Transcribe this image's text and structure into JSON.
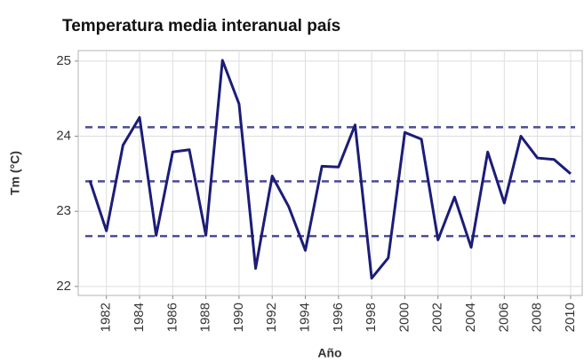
{
  "chart_data": {
    "type": "line",
    "title": "Temperatura media interanual país",
    "x_label": "Año",
    "y_label": "Tm (°C)",
    "x": [
      1981,
      1982,
      1983,
      1984,
      1985,
      1986,
      1987,
      1988,
      1989,
      1990,
      1991,
      1992,
      1993,
      1994,
      1995,
      1996,
      1997,
      1998,
      1999,
      2000,
      2001,
      2002,
      2003,
      2004,
      2005,
      2006,
      2007,
      2008,
      2009,
      2010
    ],
    "series": [
      {
        "color": "#1c1c78",
        "values": [
          23.41,
          22.74,
          23.88,
          24.25,
          22.68,
          23.79,
          23.82,
          22.68,
          25.01,
          24.43,
          22.24,
          23.47,
          23.06,
          22.48,
          23.6,
          23.59,
          24.15,
          22.11,
          22.38,
          24.05,
          23.96,
          22.62,
          23.19,
          22.52,
          23.79,
          23.11,
          24.0,
          23.71,
          23.69,
          23.5
        ]
      }
    ],
    "hlines": [
      24.12,
      23.4,
      22.67
    ],
    "hline_color": "#4b4b96",
    "xlim": [
      1980.3,
      2010.7
    ],
    "ylim": [
      21.88,
      25.14
    ],
    "xticks": [
      1982,
      1984,
      1986,
      1988,
      1990,
      1992,
      1994,
      1996,
      1998,
      2000,
      2002,
      2004,
      2006,
      2008,
      2010
    ],
    "yticks": [
      22,
      23,
      24,
      25
    ],
    "grid": true
  }
}
